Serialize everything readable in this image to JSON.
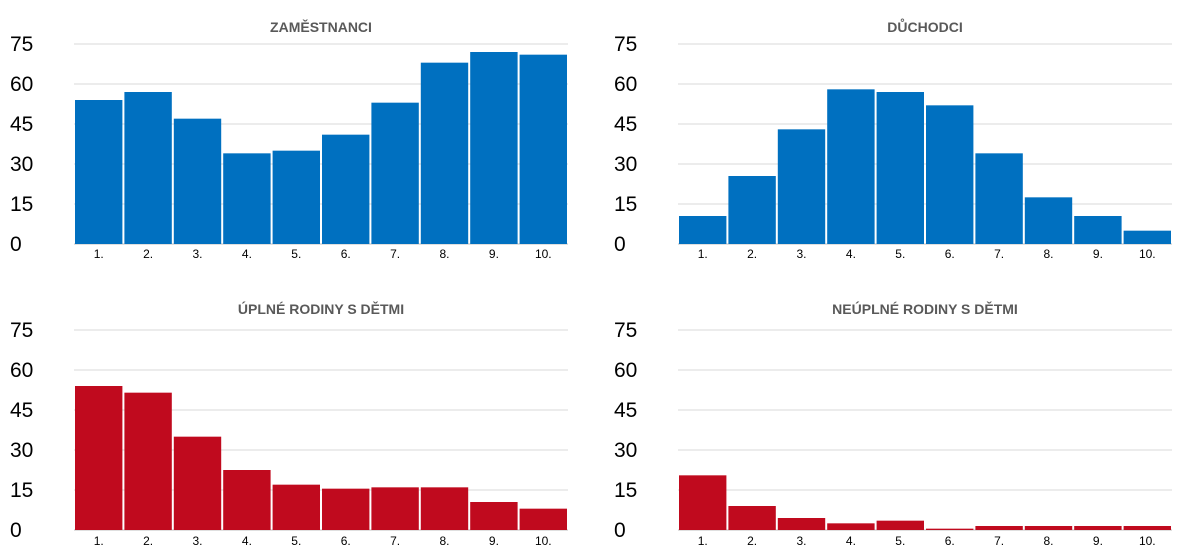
{
  "chart_data": [
    {
      "type": "bar",
      "title": "ZAMĚSTNANCI",
      "categories": [
        "1.",
        "2.",
        "3.",
        "4.",
        "5.",
        "6.",
        "7.",
        "8.",
        "9.",
        "10."
      ],
      "values": [
        54,
        57,
        47,
        34,
        35,
        41,
        53,
        68,
        72,
        71
      ],
      "ylim": [
        0,
        75
      ],
      "yticks": [
        "0",
        "15",
        "30",
        "45",
        "60",
        "75"
      ],
      "color": "#0070c0",
      "grid": true
    },
    {
      "type": "bar",
      "title": "DŮCHODCI",
      "categories": [
        "1.",
        "2.",
        "3.",
        "4.",
        "5.",
        "6.",
        "7.",
        "8.",
        "9.",
        "10."
      ],
      "values": [
        10.5,
        25.5,
        43,
        58,
        57,
        52,
        34,
        17.5,
        10.5,
        5
      ],
      "ylim": [
        0,
        75
      ],
      "yticks": [
        "0",
        "15",
        "30",
        "45",
        "60",
        "75"
      ],
      "color": "#0070c0",
      "grid": true
    },
    {
      "type": "bar",
      "title": "ÚPLNÉ RODINY S DĚTMI",
      "categories": [
        "1.",
        "2.",
        "3.",
        "4.",
        "5.",
        "6.",
        "7.",
        "8.",
        "9.",
        "10."
      ],
      "values": [
        54,
        51.5,
        35,
        22.5,
        17,
        15.5,
        16,
        16,
        10.5,
        8
      ],
      "ylim": [
        0,
        75
      ],
      "yticks": [
        "0",
        "15",
        "30",
        "45",
        "60",
        "75"
      ],
      "color": "#c00a1e",
      "grid": true
    },
    {
      "type": "bar",
      "title": "NEÚPLNÉ RODINY S DĚTMI",
      "categories": [
        "1.",
        "2.",
        "3.",
        "4.",
        "5.",
        "6.",
        "7.",
        "8.",
        "9.",
        "10."
      ],
      "values": [
        20.5,
        9,
        4.5,
        2.5,
        3.5,
        0.5,
        1.5,
        1.5,
        1.5,
        1.5
      ],
      "ylim": [
        0,
        75
      ],
      "yticks": [
        "0",
        "15",
        "30",
        "45",
        "60",
        "75"
      ],
      "color": "#c00a1e",
      "grid": true
    }
  ]
}
